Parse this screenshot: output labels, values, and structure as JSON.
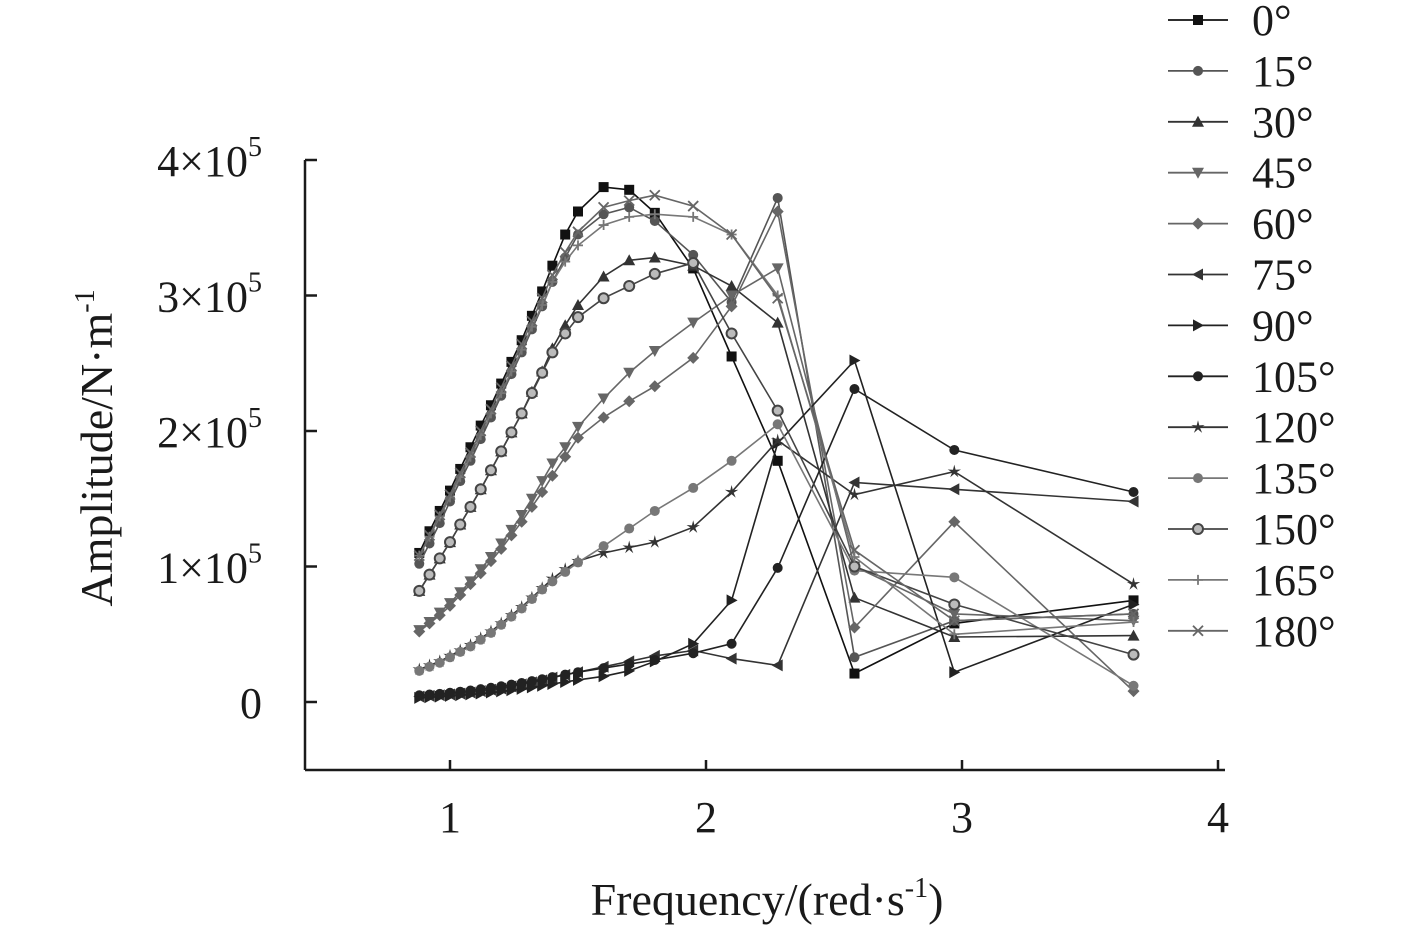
{
  "chart_data": {
    "type": "line",
    "title": "",
    "xlabel": {
      "base": "Frequency/(red·s",
      "sup": "-1",
      "suffix": ")"
    },
    "ylabel": {
      "base": "Amplitude/N·m",
      "sup": "-1"
    },
    "xlim": [
      0.43,
      4.03
    ],
    "ylim": [
      -50000,
      400000
    ],
    "xticks": [
      {
        "value": 1,
        "label": "1"
      },
      {
        "value": 2,
        "label": "2"
      },
      {
        "value": 3,
        "label": "3"
      },
      {
        "value": 4,
        "label": "4"
      }
    ],
    "yticks": [
      {
        "value": 0,
        "label": "0",
        "exp": ""
      },
      {
        "value": 100000,
        "label": "1×10",
        "exp": "5"
      },
      {
        "value": 200000,
        "label": "2×10",
        "exp": "5"
      },
      {
        "value": 300000,
        "label": "3×10",
        "exp": "5"
      },
      {
        "value": 400000,
        "label": "4×10",
        "exp": "5"
      }
    ],
    "grid": false,
    "legend_position": "right",
    "series": [
      {
        "name": "0°",
        "marker": "square",
        "color": "#111111",
        "x": [
          0.88,
          0.92,
          0.96,
          1.0,
          1.04,
          1.08,
          1.12,
          1.16,
          1.2,
          1.24,
          1.28,
          1.32,
          1.36,
          1.4,
          1.45,
          1.5,
          1.6,
          1.7,
          1.8,
          1.95,
          2.1,
          2.28,
          2.58,
          2.97,
          3.67
        ],
        "y": [
          110000,
          126000,
          141000,
          156000,
          172000,
          188000,
          204000,
          219000,
          235000,
          251000,
          267000,
          285000,
          303000,
          322000,
          345000,
          362000,
          380000,
          378000,
          361000,
          320000,
          255000,
          178000,
          21000,
          58000,
          75000
        ]
      },
      {
        "name": "15°",
        "marker": "circle",
        "color": "#555555",
        "x": [
          0.88,
          0.92,
          0.96,
          1.0,
          1.04,
          1.08,
          1.12,
          1.16,
          1.2,
          1.24,
          1.28,
          1.32,
          1.36,
          1.4,
          1.45,
          1.5,
          1.6,
          1.7,
          1.8,
          1.95,
          2.1,
          2.28,
          2.58,
          2.97,
          3.67
        ],
        "y": [
          102000,
          117000,
          132000,
          148000,
          163000,
          178000,
          194000,
          210000,
          226000,
          242000,
          258000,
          275000,
          292000,
          310000,
          328000,
          345000,
          360000,
          365000,
          355000,
          330000,
          295000,
          372000,
          33000,
          60000,
          65000
        ]
      },
      {
        "name": "30°",
        "marker": "triangle-up",
        "color": "#333333",
        "x": [
          0.88,
          0.92,
          0.96,
          1.0,
          1.04,
          1.08,
          1.12,
          1.16,
          1.2,
          1.24,
          1.28,
          1.32,
          1.36,
          1.4,
          1.45,
          1.5,
          1.6,
          1.7,
          1.8,
          1.95,
          2.1,
          2.28,
          2.58,
          2.97,
          3.67
        ],
        "y": [
          82000,
          94000,
          106000,
          118000,
          131000,
          144000,
          157000,
          171000,
          185000,
          199000,
          213000,
          229000,
          244000,
          261000,
          278000,
          293000,
          314000,
          326000,
          328000,
          322000,
          307000,
          280000,
          77000,
          48000,
          49000
        ]
      },
      {
        "name": "45°",
        "marker": "triangle-down",
        "color": "#666666",
        "x": [
          0.88,
          0.92,
          0.96,
          1.0,
          1.04,
          1.08,
          1.12,
          1.16,
          1.2,
          1.24,
          1.28,
          1.32,
          1.36,
          1.4,
          1.45,
          1.5,
          1.6,
          1.7,
          1.8,
          1.95,
          2.1,
          2.28,
          2.58,
          2.97,
          3.67
        ],
        "y": [
          53000,
          59000,
          66000,
          73000,
          81000,
          89000,
          98000,
          107000,
          117000,
          127000,
          138000,
          150000,
          163000,
          176000,
          188000,
          203000,
          224000,
          243000,
          259000,
          280000,
          300000,
          320000,
          100000,
          65000,
          60000
        ]
      },
      {
        "name": "60°",
        "marker": "diamond",
        "color": "#666666",
        "x": [
          0.88,
          0.92,
          0.96,
          1.0,
          1.04,
          1.08,
          1.12,
          1.16,
          1.2,
          1.24,
          1.28,
          1.32,
          1.36,
          1.4,
          1.45,
          1.5,
          1.6,
          1.7,
          1.8,
          1.95,
          2.1,
          2.28,
          2.58,
          2.97,
          3.67
        ],
        "y": [
          52000,
          58000,
          64000,
          71000,
          79000,
          87000,
          95000,
          104000,
          113000,
          123000,
          133000,
          144000,
          155000,
          167000,
          181000,
          195000,
          210000,
          222000,
          233000,
          254000,
          292000,
          362000,
          55000,
          133000,
          8000
        ]
      },
      {
        "name": "75°",
        "marker": "triangle-left",
        "color": "#333333",
        "x": [
          0.88,
          0.92,
          0.96,
          1.0,
          1.04,
          1.08,
          1.12,
          1.16,
          1.2,
          1.24,
          1.28,
          1.32,
          1.36,
          1.4,
          1.45,
          1.5,
          1.6,
          1.7,
          1.8,
          1.95,
          2.1,
          2.28,
          2.58,
          2.97,
          3.67
        ],
        "y": [
          4000,
          4500,
          5000,
          5500,
          6200,
          7000,
          8000,
          9000,
          10000,
          11500,
          13000,
          14500,
          16000,
          18000,
          20000,
          22000,
          26000,
          30000,
          34000,
          38000,
          32000,
          27000,
          162000,
          157000,
          148000
        ]
      },
      {
        "name": "90°",
        "marker": "triangle-right",
        "color": "#222222",
        "x": [
          0.88,
          0.92,
          0.96,
          1.0,
          1.04,
          1.08,
          1.12,
          1.16,
          1.2,
          1.24,
          1.28,
          1.32,
          1.36,
          1.4,
          1.45,
          1.5,
          1.6,
          1.7,
          1.8,
          1.95,
          2.1,
          2.28,
          2.58,
          2.97,
          3.67
        ],
        "y": [
          3000,
          3500,
          4000,
          4500,
          5000,
          5600,
          6300,
          7000,
          7800,
          8700,
          9700,
          10800,
          12000,
          13300,
          14800,
          16300,
          19000,
          23000,
          30000,
          43000,
          75000,
          191000,
          252000,
          22000,
          72000
        ]
      },
      {
        "name": "105°",
        "marker": "circle",
        "color": "#222222",
        "x": [
          0.88,
          0.92,
          0.96,
          1.0,
          1.04,
          1.08,
          1.12,
          1.16,
          1.2,
          1.24,
          1.28,
          1.32,
          1.36,
          1.4,
          1.45,
          1.5,
          1.6,
          1.7,
          1.8,
          1.95,
          2.1,
          2.28,
          2.58,
          2.97,
          3.67
        ],
        "y": [
          5000,
          5500,
          6000,
          6800,
          7600,
          8500,
          9500,
          10500,
          11600,
          12800,
          14000,
          15400,
          16800,
          18400,
          20200,
          22000,
          25000,
          28000,
          31000,
          36000,
          43000,
          99000,
          231000,
          186000,
          155000
        ]
      },
      {
        "name": "120°",
        "marker": "star",
        "color": "#333333",
        "x": [
          0.88,
          0.92,
          0.96,
          1.0,
          1.04,
          1.08,
          1.12,
          1.16,
          1.2,
          1.24,
          1.28,
          1.32,
          1.36,
          1.4,
          1.45,
          1.5,
          1.6,
          1.7,
          1.8,
          1.95,
          2.1,
          2.28,
          2.58,
          2.97,
          3.67
        ],
        "y": [
          24000,
          27000,
          30000,
          34000,
          38000,
          42000,
          47000,
          52000,
          58000,
          64000,
          70000,
          77000,
          84000,
          91000,
          98000,
          104000,
          110000,
          114000,
          118000,
          129000,
          155000,
          193000,
          153000,
          170000,
          87000
        ]
      },
      {
        "name": "135°",
        "marker": "circle",
        "color": "#777777",
        "x": [
          0.88,
          0.92,
          0.96,
          1.0,
          1.04,
          1.08,
          1.12,
          1.16,
          1.2,
          1.24,
          1.28,
          1.32,
          1.36,
          1.4,
          1.45,
          1.5,
          1.6,
          1.7,
          1.8,
          1.95,
          2.1,
          2.28,
          2.58,
          2.97,
          3.67
        ],
        "y": [
          23000,
          26000,
          29000,
          33000,
          37000,
          41000,
          46000,
          51000,
          57000,
          63000,
          69000,
          76000,
          83000,
          89000,
          96000,
          103000,
          115000,
          128000,
          141000,
          158000,
          178000,
          205000,
          97000,
          92000,
          12000
        ]
      },
      {
        "name": "150°",
        "marker": "half-circle",
        "color": "#444444",
        "x": [
          0.88,
          0.92,
          0.96,
          1.0,
          1.04,
          1.08,
          1.12,
          1.16,
          1.2,
          1.24,
          1.28,
          1.32,
          1.36,
          1.4,
          1.45,
          1.5,
          1.6,
          1.7,
          1.8,
          1.95,
          2.1,
          2.28,
          2.58,
          2.97,
          3.67
        ],
        "y": [
          82000,
          94000,
          106000,
          118000,
          131000,
          144000,
          157000,
          171000,
          185000,
          199000,
          213000,
          228000,
          243000,
          258000,
          272000,
          284000,
          298000,
          307000,
          316000,
          324000,
          272000,
          215000,
          100000,
          72000,
          35000
        ]
      },
      {
        "name": "165°",
        "marker": "plus",
        "color": "#777777",
        "x": [
          0.88,
          0.92,
          0.96,
          1.0,
          1.04,
          1.08,
          1.12,
          1.16,
          1.2,
          1.24,
          1.28,
          1.32,
          1.36,
          1.4,
          1.45,
          1.5,
          1.6,
          1.7,
          1.8,
          1.95,
          2.1,
          2.28,
          2.58,
          2.97,
          3.67
        ],
        "y": [
          108000,
          122000,
          137000,
          151000,
          166000,
          181000,
          197000,
          213000,
          228000,
          244000,
          260000,
          277000,
          293000,
          310000,
          325000,
          337000,
          352000,
          358000,
          360000,
          358000,
          345000,
          300000,
          107000,
          50000,
          59000
        ]
      },
      {
        "name": "180°",
        "marker": "x",
        "color": "#666666",
        "x": [
          0.88,
          0.92,
          0.96,
          1.0,
          1.04,
          1.08,
          1.12,
          1.16,
          1.2,
          1.24,
          1.28,
          1.32,
          1.36,
          1.4,
          1.45,
          1.5,
          1.6,
          1.7,
          1.8,
          1.95,
          2.1,
          2.28,
          2.58,
          2.97,
          3.67
        ],
        "y": [
          108000,
          123000,
          138000,
          153000,
          169000,
          184000,
          200000,
          216000,
          232000,
          248000,
          264000,
          281000,
          298000,
          315000,
          332000,
          347000,
          365000,
          370000,
          374000,
          366000,
          345000,
          298000,
          112000,
          60000,
          65000
        ]
      }
    ]
  }
}
